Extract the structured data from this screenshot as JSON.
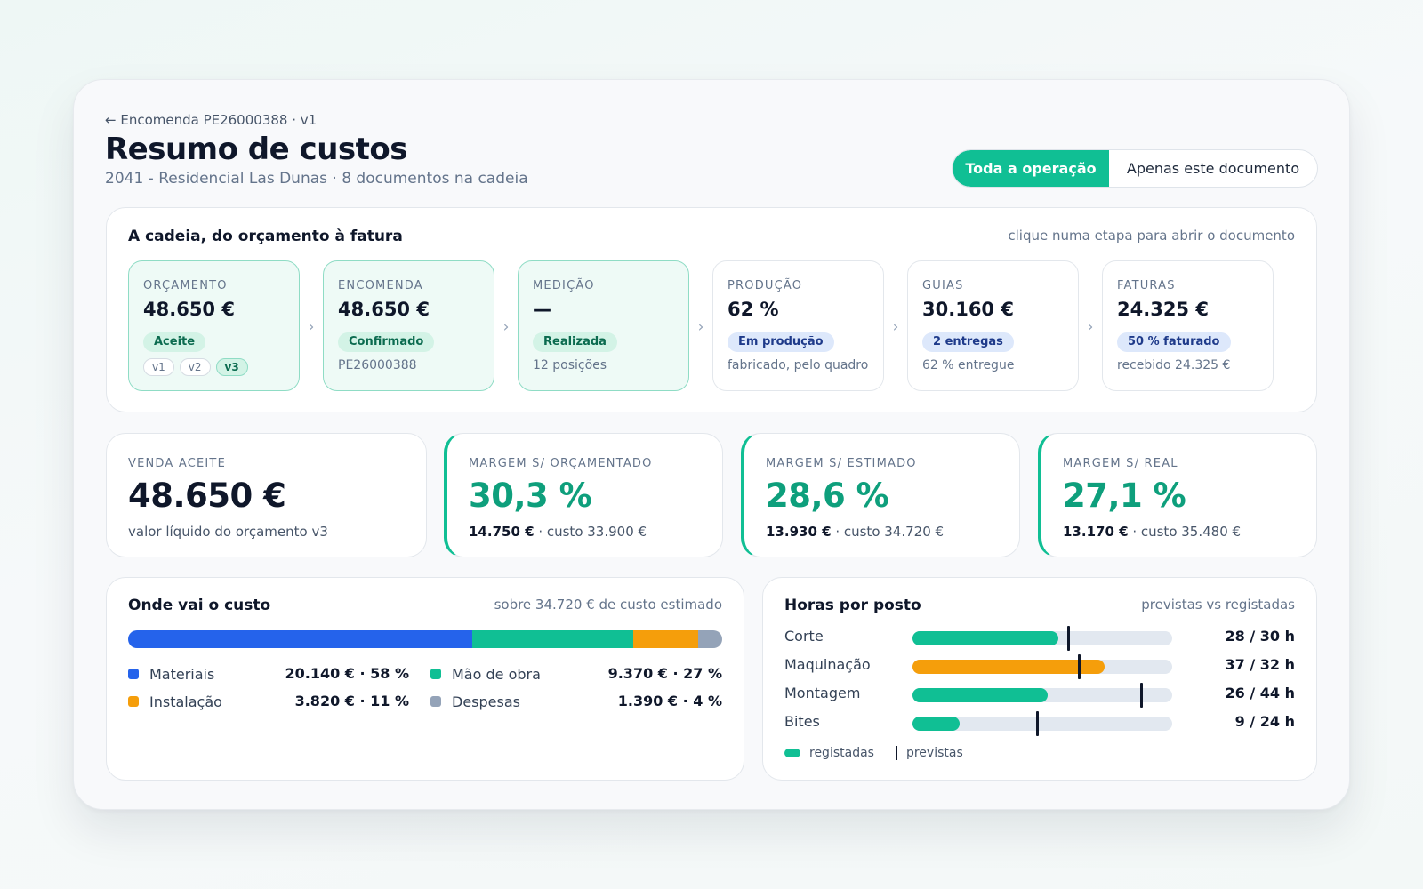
{
  "header": {
    "back_link": "← Encomenda PE26000388 · v1",
    "title": "Resumo de custos",
    "subtitle": "2041 - Residencial Las Dunas · 8 documentos na cadeia"
  },
  "scope_toggle": {
    "options": [
      "Toda a operação",
      "Apenas este documento"
    ],
    "selected": "Toda a operação",
    "accent_color": "#10bf94"
  },
  "chain": {
    "title": "A cadeia, do orçamento à fatura",
    "hint": "clique numa etapa para abrir o documento",
    "chevron": "›",
    "stages": [
      {
        "label": "ORÇAMENTO",
        "value": "48.650 €",
        "badge": "Aceite",
        "badge_color": "green",
        "versions": [
          "v1",
          "v2",
          "v3"
        ],
        "active_version": "v3"
      },
      {
        "label": "ENCOMENDA",
        "value": "48.650 €",
        "badge": "Confirmado",
        "badge_color": "green",
        "note": "PE26000388"
      },
      {
        "label": "MEDIÇÃO",
        "value": "—",
        "badge": "Realizada",
        "badge_color": "green",
        "note": "12 posições"
      },
      {
        "label": "PRODUÇÃO",
        "value": "62 %",
        "badge": "Em produção",
        "badge_color": "blue",
        "note": "fabricado, pelo quadro"
      },
      {
        "label": "GUIAS",
        "value": "30.160 €",
        "badge": "2 entregas",
        "badge_color": "blue",
        "note": "62 % entregue"
      },
      {
        "label": "FATURAS",
        "value": "24.325 €",
        "badge": "50 % faturado",
        "badge_color": "blue",
        "note": "recebido 24.325 €"
      }
    ]
  },
  "kpis": [
    {
      "label": "VENDA ACEITE",
      "value": "48.650 €",
      "sub": "valor líquido do orçamento v3"
    },
    {
      "label": "MARGEM S/ ORÇAMENTADO",
      "value": "30,3 %",
      "sub_bold": "14.750 €",
      "sub": "· custo 33.900 €"
    },
    {
      "label": "MARGEM S/ ESTIMADO",
      "value": "28,6 %",
      "sub_bold": "13.930 €",
      "sub": "· custo 34.720 €"
    },
    {
      "label": "MARGEM S/ REAL",
      "value": "27,1 %",
      "sub_bold": "13.170 €",
      "sub": "· custo 35.480 €"
    }
  ],
  "cost_breakdown": {
    "title": "Onde vai o custo",
    "hint": "sobre 34.720 € de custo estimado",
    "items": [
      {
        "name": "Materiais",
        "value": "20.140 € · 58 %",
        "percent": 58,
        "color": "#2563eb"
      },
      {
        "name": "Mão de obra",
        "value": "9.370 € · 27 %",
        "percent": 27,
        "color": "#10bf94"
      },
      {
        "name": "Instalação",
        "value": "3.820 € · 11 %",
        "percent": 11,
        "color": "#f59e0b"
      },
      {
        "name": "Despesas",
        "value": "1.390 € · 4 %",
        "percent": 4,
        "color": "#94a3b8"
      }
    ]
  },
  "hours": {
    "title": "Horas por posto",
    "hint": "previstas vs registadas",
    "scale_max": 50,
    "rows": [
      {
        "name": "Corte",
        "value": "28 / 30 h",
        "registered": 28,
        "planned": 30,
        "color": "#10bf94"
      },
      {
        "name": "Maquinação",
        "value": "37 / 32 h",
        "registered": 37,
        "planned": 32,
        "color": "#f59e0b"
      },
      {
        "name": "Montagem",
        "value": "26 / 44 h",
        "registered": 26,
        "planned": 44,
        "color": "#10bf94"
      },
      {
        "name": "Bites",
        "value": "9 / 24 h",
        "registered": 9,
        "planned": 24,
        "color": "#10bf94"
      }
    ],
    "legend": {
      "registered": "registadas",
      "planned": "previstas"
    }
  }
}
